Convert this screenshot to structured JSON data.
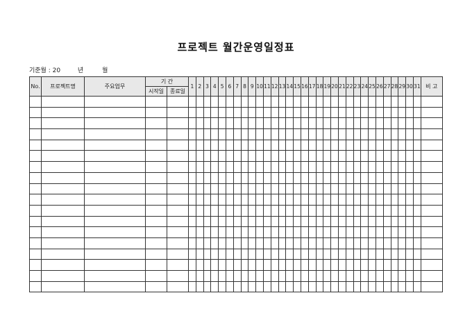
{
  "title": "프로젝트 월간운영일정표",
  "basis": {
    "label": "기준월 : 20",
    "year": "년",
    "month": "월"
  },
  "headers": {
    "no": "No.",
    "project": "프로젝트명",
    "task": "주요업무",
    "period": "기 간",
    "start": "시작일",
    "end": "종료일",
    "note": "비 고"
  },
  "days": [
    "1",
    "2",
    "3",
    "4",
    "5",
    "6",
    "7",
    "8",
    "9",
    "10",
    "11",
    "12",
    "13",
    "14",
    "15",
    "16",
    "17",
    "18",
    "19",
    "20",
    "21",
    "22",
    "23",
    "24",
    "25",
    "26",
    "27",
    "28",
    "29",
    "30",
    "31"
  ],
  "row_count": 18
}
